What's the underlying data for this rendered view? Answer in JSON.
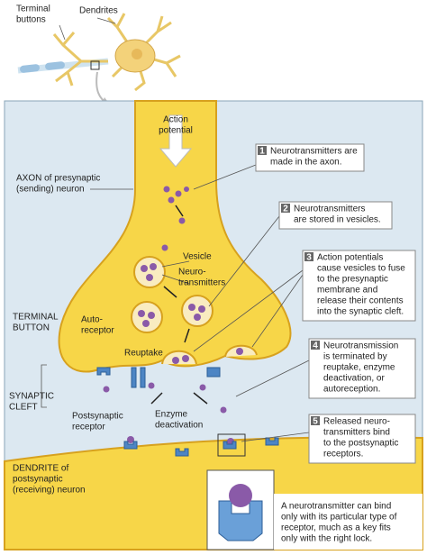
{
  "neuron_labels": {
    "terminal_buttons": [
      "Terminal",
      "buttons"
    ],
    "dendrites": [
      "Dendrites"
    ]
  },
  "labels": {
    "action_potential": [
      "Action",
      "potential"
    ],
    "axon": [
      "AXON of presynaptic",
      "(sending) neuron"
    ],
    "vesicle": [
      "Vesicle"
    ],
    "neurotransmitters": [
      "Neuro-",
      "transmitters"
    ],
    "terminal_button": [
      "TERMINAL",
      "BUTTON"
    ],
    "autoreceptor": [
      "Auto-",
      "receptor"
    ],
    "reuptake": [
      "Reuptake"
    ],
    "synaptic_cleft": [
      "SYNAPTIC",
      "CLEFT"
    ],
    "postsynaptic_receptor": [
      "Postsynaptic",
      "receptor"
    ],
    "enzyme_deactivation": [
      "Enzyme",
      "deactivation"
    ],
    "dendrite": [
      "DENDRITE of",
      "postsynaptic",
      "(receiving) neuron"
    ]
  },
  "steps": [
    {
      "number": 1,
      "lines": [
        "Neurotransmitters are",
        "made in the axon."
      ]
    },
    {
      "number": 2,
      "lines": [
        "Neurotransmitters",
        "are stored in vesicles."
      ]
    },
    {
      "number": 3,
      "lines": [
        "Action potentials",
        "cause vesicles to fuse",
        "to the presynaptic",
        "membrane and",
        "release their contents",
        "into the synaptic cleft."
      ]
    },
    {
      "number": 4,
      "lines": [
        "Neurotransmission",
        "is terminated by",
        "reuptake, enzyme",
        "deactivation, or",
        "autoreception."
      ]
    },
    {
      "number": 5,
      "lines": [
        "Released neuro-",
        "transmitters bind",
        "to the postsynaptic",
        "receptors."
      ]
    }
  ],
  "inset_note": [
    "A neurotransmitter can bind",
    "only with its particular type of",
    "receptor, much as a key fits",
    "only with the right lock."
  ]
}
